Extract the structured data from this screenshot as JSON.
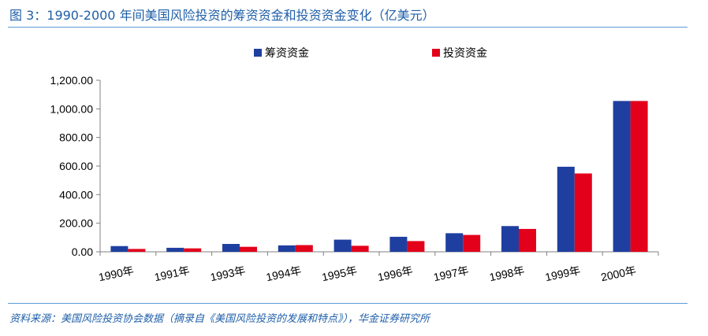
{
  "figure": {
    "title": "图 3：1990-2000 年间美国风险投资的筹资资金和投资资金变化（亿美元）",
    "source": "资料来源：美国风险投资协会数据（摘录自《美国风险投资的发展和特点》），华金证券研究所"
  },
  "colors": {
    "accent": "#1f5fa8",
    "rule": "#5b9bd5"
  },
  "chart_data": {
    "type": "bar",
    "categories": [
      "1990年",
      "1991年",
      "1993年",
      "1994年",
      "1995年",
      "1996年",
      "1997年",
      "1998年",
      "1999年",
      "2000年"
    ],
    "series": [
      {
        "name": "筹资资金",
        "color": "#1f3fa0",
        "values": [
          40,
          28,
          55,
          45,
          85,
          105,
          130,
          180,
          595,
          1055
        ]
      },
      {
        "name": "投资资金",
        "color": "#e3001b",
        "values": [
          20,
          24,
          35,
          47,
          42,
          75,
          118,
          160,
          548,
          1055
        ]
      }
    ],
    "yticks": [
      "0.00",
      "200.00",
      "400.00",
      "600.00",
      "800.00",
      "1,000.00",
      "1,200.00"
    ],
    "ylim": [
      0,
      1200
    ],
    "legend_position": "top-center",
    "grid": false
  }
}
